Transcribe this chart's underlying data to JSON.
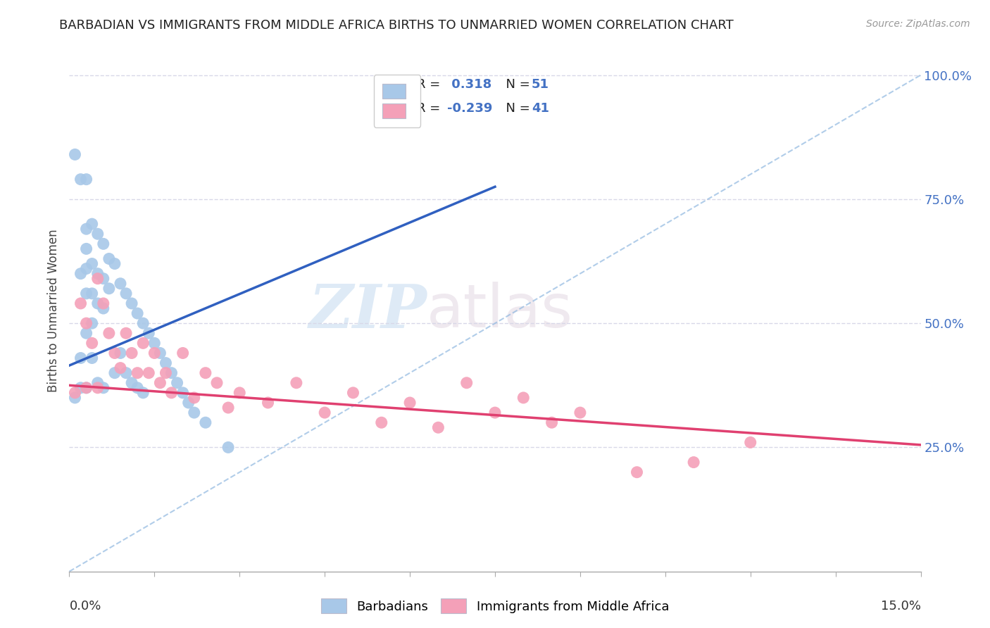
{
  "title": "BARBADIAN VS IMMIGRANTS FROM MIDDLE AFRICA BIRTHS TO UNMARRIED WOMEN CORRELATION CHART",
  "source": "Source: ZipAtlas.com",
  "ylabel": "Births to Unmarried Women",
  "ylabel_right_ticks": [
    "100.0%",
    "75.0%",
    "50.0%",
    "25.0%"
  ],
  "ylabel_right_vals": [
    1.0,
    0.75,
    0.5,
    0.25
  ],
  "xlim": [
    0.0,
    0.15
  ],
  "ylim": [
    0.0,
    1.05
  ],
  "blue_color": "#a8c8e8",
  "pink_color": "#f4a0b8",
  "trend_blue": "#3060c0",
  "trend_pink": "#e04070",
  "ref_line_color": "#90b8e0",
  "blue_trend_x0": 0.0,
  "blue_trend_y0": 0.415,
  "blue_trend_x1": 0.075,
  "blue_trend_y1": 0.775,
  "pink_trend_x0": 0.0,
  "pink_trend_y0": 0.375,
  "pink_trend_x1": 0.15,
  "pink_trend_y1": 0.255,
  "blue_x": [
    0.001,
    0.001,
    0.002,
    0.002,
    0.002,
    0.002,
    0.003,
    0.003,
    0.003,
    0.003,
    0.003,
    0.003,
    0.003,
    0.004,
    0.004,
    0.004,
    0.004,
    0.004,
    0.005,
    0.005,
    0.005,
    0.005,
    0.006,
    0.006,
    0.006,
    0.006,
    0.007,
    0.007,
    0.008,
    0.008,
    0.009,
    0.009,
    0.01,
    0.01,
    0.011,
    0.011,
    0.012,
    0.012,
    0.013,
    0.013,
    0.014,
    0.015,
    0.016,
    0.017,
    0.018,
    0.019,
    0.02,
    0.021,
    0.022,
    0.024,
    0.028
  ],
  "blue_y": [
    0.84,
    0.35,
    0.79,
    0.6,
    0.43,
    0.37,
    0.79,
    0.69,
    0.65,
    0.61,
    0.56,
    0.48,
    0.37,
    0.7,
    0.62,
    0.56,
    0.5,
    0.43,
    0.68,
    0.6,
    0.54,
    0.38,
    0.66,
    0.59,
    0.53,
    0.37,
    0.63,
    0.57,
    0.62,
    0.4,
    0.58,
    0.44,
    0.56,
    0.4,
    0.54,
    0.38,
    0.52,
    0.37,
    0.5,
    0.36,
    0.48,
    0.46,
    0.44,
    0.42,
    0.4,
    0.38,
    0.36,
    0.34,
    0.32,
    0.3,
    0.25
  ],
  "pink_x": [
    0.001,
    0.002,
    0.003,
    0.003,
    0.004,
    0.005,
    0.005,
    0.006,
    0.007,
    0.008,
    0.009,
    0.01,
    0.011,
    0.012,
    0.013,
    0.014,
    0.015,
    0.016,
    0.017,
    0.018,
    0.02,
    0.022,
    0.024,
    0.026,
    0.028,
    0.03,
    0.035,
    0.04,
    0.045,
    0.05,
    0.055,
    0.06,
    0.065,
    0.07,
    0.075,
    0.08,
    0.085,
    0.09,
    0.1,
    0.11,
    0.12
  ],
  "pink_y": [
    0.36,
    0.54,
    0.5,
    0.37,
    0.46,
    0.59,
    0.37,
    0.54,
    0.48,
    0.44,
    0.41,
    0.48,
    0.44,
    0.4,
    0.46,
    0.4,
    0.44,
    0.38,
    0.4,
    0.36,
    0.44,
    0.35,
    0.4,
    0.38,
    0.33,
    0.36,
    0.34,
    0.38,
    0.32,
    0.36,
    0.3,
    0.34,
    0.29,
    0.38,
    0.32,
    0.35,
    0.3,
    0.32,
    0.2,
    0.22,
    0.26
  ],
  "watermark_zip": "ZIP",
  "watermark_atlas": "atlas",
  "background_color": "#ffffff",
  "grid_color": "#d8d8e8"
}
